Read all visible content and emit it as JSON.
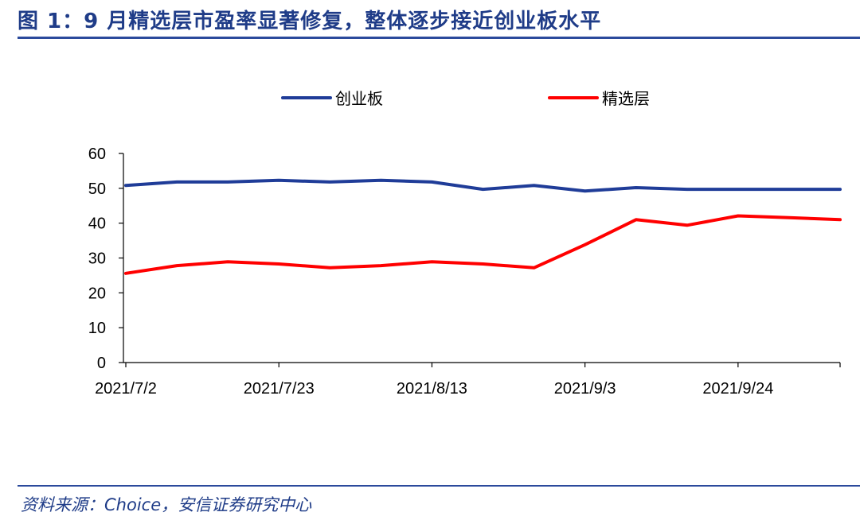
{
  "header": {
    "title": "图 1：9 月精选层市盈率显著修复，整体逐步接近创业板水平"
  },
  "footer": {
    "source": "资料来源：Choice，安信证券研究中心"
  },
  "colors": {
    "title": "#1f3c88",
    "series_cyb": "#1f3c98",
    "series_jxc": "#ff0000"
  },
  "chart_data": {
    "type": "line",
    "title": "",
    "xlabel": "",
    "ylabel": "",
    "ylim": [
      0,
      60
    ],
    "yticks": [
      "0",
      "10",
      "20",
      "30",
      "40",
      "50",
      "60"
    ],
    "x": [
      "2021/7/2",
      "2021/7/9",
      "2021/7/16",
      "2021/7/23",
      "2021/7/30",
      "2021/8/6",
      "2021/8/13",
      "2021/8/20",
      "2021/8/27",
      "2021/9/3",
      "2021/9/10",
      "2021/9/17",
      "2021/9/24",
      "2021/10/1",
      "2021/10/8"
    ],
    "xtick_labels": [
      "2021/7/2",
      "2021/7/23",
      "2021/8/13",
      "2021/9/3",
      "2021/9/24"
    ],
    "legend_position": "top-center",
    "grid": false,
    "series": [
      {
        "name": "创业板",
        "color": "#1f3c98",
        "values": [
          50.8,
          51.8,
          51.8,
          52.3,
          51.8,
          52.3,
          51.8,
          49.7,
          50.8,
          49.2,
          50.2,
          49.7,
          49.7,
          49.7,
          49.7
        ]
      },
      {
        "name": "精选层",
        "color": "#ff0000",
        "values": [
          25.6,
          27.8,
          28.9,
          28.3,
          27.2,
          27.8,
          28.9,
          28.3,
          27.2,
          33.8,
          41.0,
          39.4,
          42.1,
          41.6,
          41.0
        ]
      }
    ]
  }
}
